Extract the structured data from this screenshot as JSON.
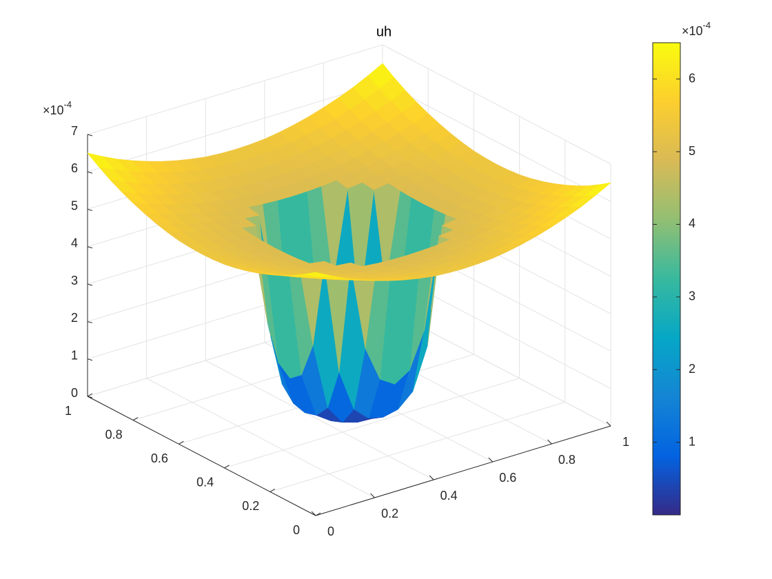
{
  "chart_data": {
    "type": "surface",
    "title": "uh",
    "x": [
      0,
      0.05,
      0.1,
      0.15,
      0.2,
      0.25,
      0.3,
      0.35,
      0.4,
      0.45,
      0.5,
      0.55,
      0.6,
      0.65,
      0.7,
      0.75,
      0.8,
      0.85,
      0.9,
      0.95,
      1
    ],
    "y": [
      0,
      0.05,
      0.1,
      0.15,
      0.2,
      0.25,
      0.3,
      0.35,
      0.4,
      0.45,
      0.5,
      0.55,
      0.6,
      0.65,
      0.7,
      0.75,
      0.8,
      0.85,
      0.9,
      0.95,
      1
    ],
    "z": [
      [
        6.5,
        6.29,
        6.1,
        5.94,
        5.8,
        5.68,
        5.58,
        5.5,
        5.44,
        5.41,
        5.4,
        5.41,
        5.44,
        5.5,
        5.58,
        5.68,
        5.8,
        5.94,
        6.1,
        6.29,
        6.5
      ],
      [
        6.29,
        6.1,
        5.93,
        5.78,
        5.65,
        5.54,
        5.45,
        5.38,
        5.33,
        5.3,
        5.29,
        5.3,
        5.33,
        5.38,
        5.45,
        5.54,
        5.65,
        5.78,
        5.93,
        6.1,
        6.29
      ],
      [
        6.1,
        5.93,
        5.77,
        5.63,
        5.52,
        5.41,
        5.33,
        5.27,
        5.22,
        5.19,
        5.18,
        5.19,
        5.22,
        5.27,
        5.33,
        5.41,
        5.52,
        5.63,
        5.77,
        5.93,
        6.1
      ],
      [
        5.94,
        5.78,
        5.63,
        5.51,
        5.4,
        5.31,
        5.23,
        5.17,
        5.13,
        5.1,
        5.09,
        5.1,
        5.13,
        5.17,
        5.23,
        5.31,
        5.4,
        5.51,
        5.63,
        5.78,
        5.94
      ],
      [
        5.8,
        5.65,
        5.52,
        5.4,
        5.3,
        5.21,
        5.14,
        5.09,
        5.05,
        5.02,
        5.02,
        5.02,
        5.05,
        5.09,
        5.14,
        5.21,
        5.3,
        5.4,
        5.52,
        5.65,
        5.8
      ],
      [
        5.68,
        5.54,
        5.41,
        5.31,
        5.21,
        5.13,
        5.07,
        5.02,
        4.98,
        4.96,
        4.95,
        4.96,
        4.98,
        5.02,
        5.07,
        5.13,
        5.21,
        5.31,
        5.41,
        5.54,
        5.68
      ],
      [
        5.58,
        5.45,
        5.33,
        5.23,
        5.14,
        5.07,
        5,
        4.96,
        2.56,
        1.61,
        1.36,
        1.61,
        2.56,
        4.96,
        5,
        5.07,
        5.14,
        5.23,
        5.33,
        5.45,
        5.58
      ],
      [
        5.5,
        5.38,
        5.27,
        5.17,
        5.09,
        5.02,
        4.96,
        1.89,
        0.77,
        0.41,
        0.32,
        0.41,
        0.77,
        1.89,
        4.96,
        5.02,
        5.09,
        5.17,
        5.27,
        5.38,
        5.5
      ],
      [
        5.44,
        5.33,
        5.22,
        5.13,
        5.05,
        4.98,
        2.56,
        0.77,
        0.26,
        0.14,
        0.12,
        0.14,
        0.26,
        0.77,
        2.56,
        4.98,
        5.05,
        5.13,
        5.22,
        5.33,
        5.44
      ],
      [
        5.41,
        5.3,
        5.19,
        5.1,
        5.02,
        4.96,
        1.61,
        0.41,
        0.14,
        0.1,
        0.1,
        0.1,
        0.14,
        0.41,
        1.61,
        4.96,
        5.02,
        5.1,
        5.19,
        5.3,
        5.41
      ],
      [
        5.4,
        5.29,
        5.18,
        5.09,
        5.02,
        4.95,
        1.36,
        0.32,
        0.12,
        0.1,
        0.1,
        0.1,
        0.12,
        0.32,
        1.36,
        4.95,
        5.02,
        5.09,
        5.18,
        5.29,
        5.4
      ],
      [
        5.41,
        5.3,
        5.19,
        5.1,
        5.02,
        4.96,
        1.61,
        0.41,
        0.14,
        0.1,
        0.1,
        0.1,
        0.14,
        0.41,
        1.61,
        4.96,
        5.02,
        5.1,
        5.19,
        5.3,
        5.41
      ],
      [
        5.44,
        5.33,
        5.22,
        5.13,
        5.05,
        4.98,
        2.56,
        0.77,
        0.26,
        0.14,
        0.12,
        0.14,
        0.26,
        0.77,
        2.56,
        4.98,
        5.05,
        5.13,
        5.22,
        5.33,
        5.44
      ],
      [
        5.5,
        5.38,
        5.27,
        5.17,
        5.09,
        5.02,
        4.96,
        1.89,
        0.77,
        0.41,
        0.32,
        0.41,
        0.77,
        1.89,
        4.96,
        5.02,
        5.09,
        5.17,
        5.27,
        5.38,
        5.5
      ],
      [
        5.58,
        5.45,
        5.33,
        5.23,
        5.14,
        5.07,
        5,
        4.96,
        2.56,
        1.61,
        1.36,
        1.61,
        2.56,
        4.96,
        5,
        5.07,
        5.14,
        5.23,
        5.33,
        5.45,
        5.58
      ],
      [
        5.68,
        5.54,
        5.41,
        5.31,
        5.21,
        5.13,
        5.07,
        5.02,
        4.98,
        4.96,
        4.95,
        4.96,
        4.98,
        5.02,
        5.07,
        5.13,
        5.21,
        5.31,
        5.41,
        5.54,
        5.68
      ],
      [
        5.8,
        5.65,
        5.52,
        5.4,
        5.3,
        5.21,
        5.14,
        5.09,
        5.05,
        5.02,
        5.02,
        5.02,
        5.05,
        5.09,
        5.14,
        5.21,
        5.3,
        5.4,
        5.52,
        5.65,
        5.8
      ],
      [
        5.94,
        5.78,
        5.63,
        5.51,
        5.4,
        5.31,
        5.23,
        5.17,
        5.13,
        5.1,
        5.09,
        5.1,
        5.13,
        5.17,
        5.23,
        5.31,
        5.4,
        5.51,
        5.63,
        5.78,
        5.94
      ],
      [
        6.1,
        5.93,
        5.77,
        5.63,
        5.52,
        5.41,
        5.33,
        5.27,
        5.22,
        5.19,
        5.18,
        5.19,
        5.22,
        5.27,
        5.33,
        5.41,
        5.52,
        5.63,
        5.77,
        5.93,
        6.1
      ],
      [
        6.29,
        6.1,
        5.93,
        5.78,
        5.65,
        5.54,
        5.45,
        5.38,
        5.33,
        5.3,
        5.29,
        5.3,
        5.33,
        5.38,
        5.45,
        5.54,
        5.65,
        5.78,
        5.93,
        6.1,
        6.29
      ],
      [
        6.5,
        6.29,
        6.1,
        5.94,
        5.8,
        5.68,
        5.58,
        5.5,
        5.44,
        5.41,
        5.4,
        5.41,
        5.44,
        5.5,
        5.58,
        5.68,
        5.8,
        5.94,
        6.1,
        6.29,
        6.5
      ]
    ],
    "xlim": [
      0,
      1
    ],
    "ylim": [
      0,
      1
    ],
    "zlim": [
      0,
      7
    ],
    "xticks": [
      0,
      0.2,
      0.4,
      0.6,
      0.8,
      1
    ],
    "yticks": [
      0,
      0.2,
      0.4,
      0.6,
      0.8,
      1
    ],
    "zticks": [
      0,
      1,
      2,
      3,
      4,
      5,
      6,
      7
    ],
    "z_multiplier": {
      "base": "×10",
      "exponent": "-4"
    },
    "grid": true,
    "colormap": [
      "#352a87",
      "#0363e1",
      "#1485d4",
      "#06a7c6",
      "#38b99e",
      "#92bf73",
      "#d9ba56",
      "#fcce2e",
      "#f9fb0e"
    ],
    "colorbar": {
      "clim": [
        0,
        6.5
      ],
      "ticks": [
        1,
        2,
        3,
        4,
        5,
        6
      ],
      "multiplier": {
        "base": "×10",
        "exponent": "-4"
      }
    }
  }
}
